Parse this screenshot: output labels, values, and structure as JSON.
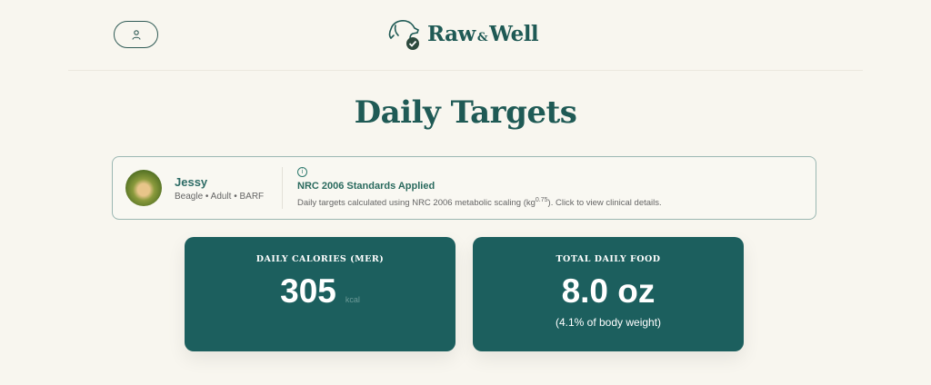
{
  "header": {
    "account_icon": "user-icon",
    "logo": {
      "name_part1": "Raw",
      "amp": "&",
      "name_part2": "Well",
      "icon": "dog-check-icon"
    }
  },
  "page": {
    "title": "Daily Targets"
  },
  "pet": {
    "name": "Jessy",
    "meta": "Beagle • Adult • BARF"
  },
  "standards": {
    "icon": "info-icon",
    "title": "NRC 2006 Standards Applied",
    "desc_before": "Daily targets calculated using NRC 2006 metabolic scaling (kg",
    "exponent": "0.75",
    "desc_after": "). Click to view clinical details."
  },
  "cards": [
    {
      "label": "DAILY CALORIES (MER)",
      "value": "305",
      "unit": "kcal"
    },
    {
      "label": "TOTAL DAILY FOOD",
      "value": "8.0 oz",
      "sub": "(4.1% of body weight)"
    }
  ],
  "colors": {
    "brand": "#1f5a55",
    "card": "#1c5f5e",
    "background": "#f8f6ef"
  }
}
